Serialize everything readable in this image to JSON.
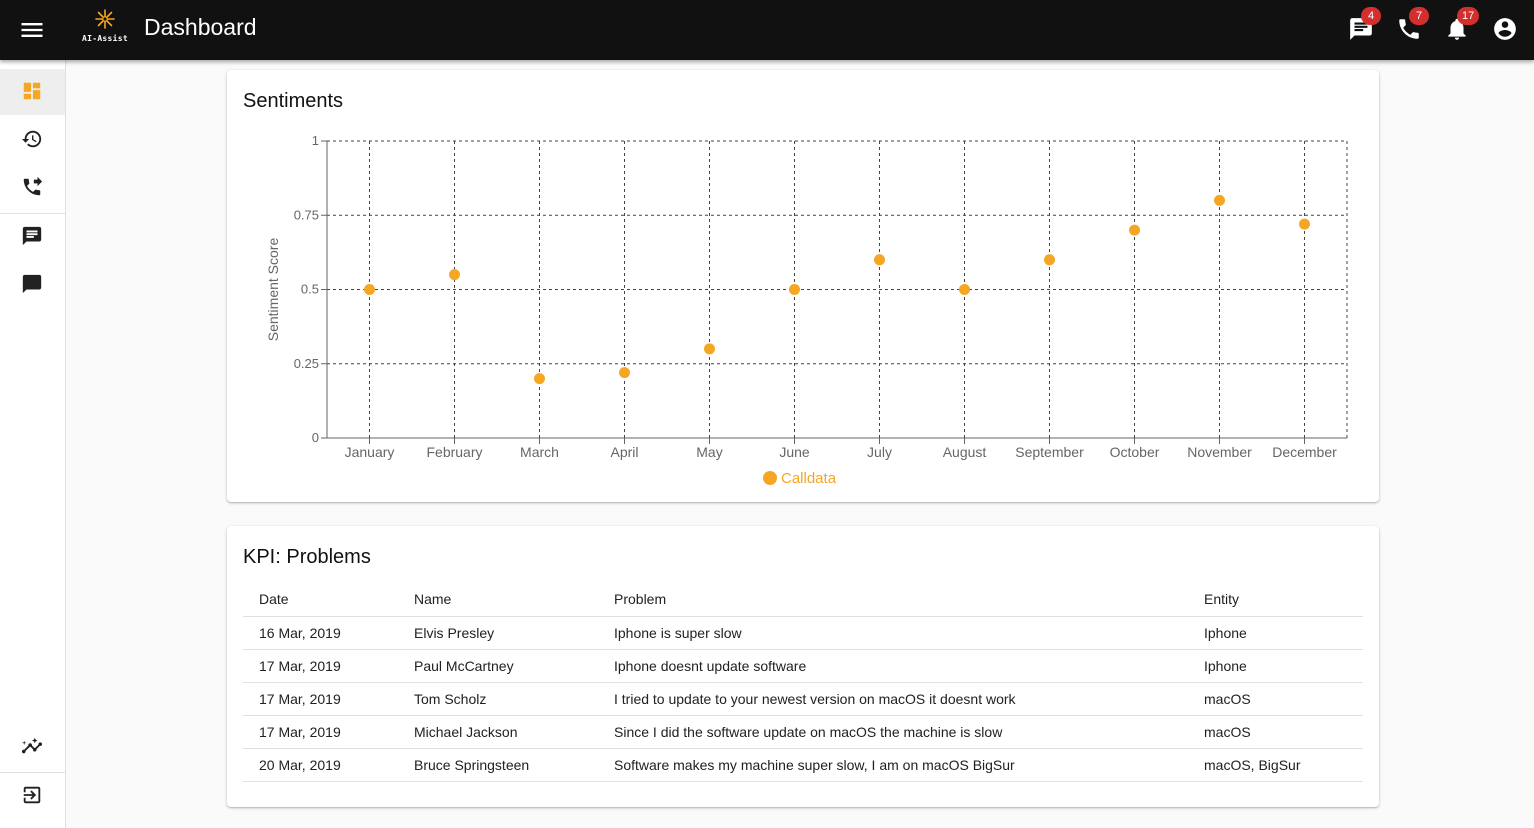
{
  "app": {
    "logo_text": "AI-Assist",
    "title": "Dashboard"
  },
  "top_icons": [
    {
      "icon": "chat-icon",
      "badge": "4"
    },
    {
      "icon": "phone-icon",
      "badge": "7"
    },
    {
      "icon": "bell-icon",
      "badge": "17"
    },
    {
      "icon": "account-circle-icon",
      "badge": null
    }
  ],
  "sidebar": [
    {
      "icon": "dashboard-icon",
      "active": true
    },
    {
      "icon": "history-icon"
    },
    {
      "icon": "phone-forward-icon"
    },
    {
      "icon": "message-text-icon"
    },
    {
      "icon": "message-icon"
    },
    {
      "icon": "analytics-icon"
    },
    {
      "icon": "logout-icon"
    }
  ],
  "colors": {
    "accent": "#f5a623",
    "appbar": "#111111",
    "badge": "#d32f2f"
  },
  "sentiments": {
    "title": "Sentiments"
  },
  "chart_data": {
    "type": "scatter",
    "title": "Sentiments",
    "xlabel": "",
    "ylabel": "Sentiment Score",
    "ylim": [
      0,
      1
    ],
    "yticks": [
      "0",
      "0.25",
      "0.5",
      "0.75",
      "1"
    ],
    "categories": [
      "January",
      "February",
      "March",
      "April",
      "May",
      "June",
      "July",
      "August",
      "September",
      "October",
      "November",
      "December"
    ],
    "series": [
      {
        "name": "Calldata",
        "color": "#f5a623",
        "values": [
          0.5,
          0.55,
          0.2,
          0.22,
          0.3,
          0.5,
          0.6,
          0.5,
          0.6,
          0.7,
          0.8,
          0.72
        ]
      }
    ],
    "grid": true,
    "legend": "bottom-center"
  },
  "kpi": {
    "title": "KPI: Problems",
    "columns": [
      "Date",
      "Name",
      "Problem",
      "Entity"
    ],
    "rows": [
      [
        "16 Mar, 2019",
        "Elvis Presley",
        "Iphone is super slow",
        "Iphone"
      ],
      [
        "17 Mar, 2019",
        "Paul McCartney",
        "Iphone doesnt update software",
        "Iphone"
      ],
      [
        "17 Mar, 2019",
        "Tom Scholz",
        "I tried to update to your newest version on macOS it doesnt work",
        "macOS"
      ],
      [
        "17 Mar, 2019",
        "Michael Jackson",
        "Since I did the software update on macOS the machine is slow",
        "macOS"
      ],
      [
        "20 Mar, 2019",
        "Bruce Springsteen",
        "Software makes my machine super slow, I am on macOS BigSur",
        "macOS, BigSur"
      ]
    ]
  }
}
